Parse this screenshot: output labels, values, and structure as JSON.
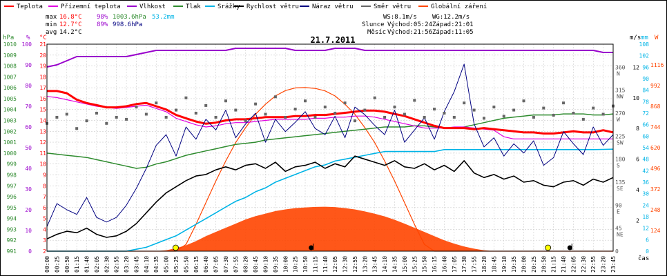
{
  "chart_data": {
    "type": "line",
    "title": "21.7.2011",
    "time_unit": "čas",
    "legend": [
      {
        "name": "Teplota",
        "color": "#ff0000"
      },
      {
        "name": "Přízemní teplota",
        "color": "#e000e0"
      },
      {
        "name": "Vlhkost",
        "color": "#9900cc"
      },
      {
        "name": "Tlak",
        "color": "#2e8b2e"
      },
      {
        "name": "Srážky",
        "color": "#00b4e6"
      },
      {
        "name": "Rychlost větru",
        "color": "#000000"
      },
      {
        "name": "Náraz větru",
        "color": "#000080"
      },
      {
        "name": "Směr větru",
        "color": "#666666"
      },
      {
        "name": "Globální záření",
        "color": "#ff4500"
      }
    ],
    "stats": {
      "max": {
        "label": "max",
        "temp": "16.8°C",
        "hum": "98%",
        "press": "1003.6hPa",
        "rain": "53.2mm"
      },
      "min": {
        "label": "min",
        "temp": "12.7°C",
        "hum": "89%",
        "press": "998.6hPa"
      },
      "avg": {
        "label": "avg",
        "temp": "14.2°C"
      }
    },
    "info": {
      "ws": "WS:8.1m/s",
      "wg": "WG:12.2m/s",
      "sun_label": "Slunce",
      "sun_rise": "Východ:05:24",
      "sun_set": "Západ:21:01",
      "moon_label": "Měsíc",
      "moon_rise": "Východ:21:56",
      "moon_set": "Západ:11:05"
    },
    "axes": {
      "hpa": {
        "unit": "hPa",
        "min": 991,
        "max": 1010,
        "color": "#2e8b2e"
      },
      "pct": {
        "unit": "%",
        "ticks": [
          100,
          90,
          80,
          70,
          60,
          50,
          40,
          30,
          20,
          10,
          0
        ],
        "color": "#9900cc"
      },
      "degc": {
        "unit": "°C",
        "min": 2,
        "max": 21,
        "color": "#ff0000"
      },
      "deg": {
        "unit": "°",
        "ticks": [
          {
            "v": 360,
            "l": "N"
          },
          {
            "v": 315,
            "l": "NW"
          },
          {
            "v": 270,
            "l": "W"
          },
          {
            "v": 225,
            "l": "SW"
          },
          {
            "v": 180,
            "l": "S"
          },
          {
            "v": 135,
            "l": "SE"
          },
          {
            "v": 90,
            "l": "E"
          },
          {
            "v": 45,
            "l": "NE"
          },
          {
            "v": 0,
            "l": ""
          }
        ],
        "color": "#555555"
      },
      "ms": {
        "unit": "m/s",
        "ticks": [
          12,
          10,
          8,
          6,
          4,
          2
        ],
        "color": "#000000"
      },
      "mm": {
        "unit": "mm",
        "min": 0,
        "max": 108,
        "step": 6,
        "color": "#00b4e6"
      },
      "w": {
        "unit": "W",
        "ticks": [
          1116,
          992,
          868,
          744,
          620,
          496,
          372,
          248,
          124
        ],
        "color": "#ff4500"
      }
    },
    "x_labels": [
      "00:00",
      "00:25",
      "00:50",
      "01:15",
      "01:40",
      "02:05",
      "02:30",
      "02:55",
      "03:20",
      "03:45",
      "04:10",
      "04:35",
      "05:00",
      "05:25",
      "05:50",
      "06:15",
      "06:40",
      "07:05",
      "07:30",
      "07:55",
      "08:20",
      "08:45",
      "09:10",
      "09:35",
      "10:00",
      "10:25",
      "10:50",
      "11:15",
      "11:40",
      "12:05",
      "12:30",
      "12:55",
      "13:20",
      "13:45",
      "14:10",
      "14:35",
      "15:00",
      "15:25",
      "15:50",
      "16:15",
      "16:40",
      "17:05",
      "17:30",
      "17:55",
      "18:20",
      "18:45",
      "19:10",
      "19:35",
      "20:00",
      "20:25",
      "20:50",
      "21:15",
      "21:40",
      "22:05",
      "22:30",
      "22:55",
      "23:20",
      "23:45"
    ],
    "series": {
      "temperature": [
        16.7,
        16.7,
        16.5,
        15.9,
        15.6,
        15.4,
        15.2,
        15.2,
        15.3,
        15.5,
        15.6,
        15.3,
        15.0,
        14.5,
        14.2,
        13.9,
        13.7,
        13.8,
        14.0,
        14.1,
        14.1,
        14.2,
        14.3,
        14.3,
        14.3,
        14.4,
        14.4,
        14.5,
        14.5,
        14.6,
        14.7,
        14.8,
        14.9,
        14.9,
        14.8,
        14.6,
        14.4,
        14.1,
        13.8,
        13.5,
        13.3,
        13.3,
        13.3,
        13.2,
        13.3,
        13.2,
        13.1,
        13.0,
        12.9,
        12.9,
        12.8,
        12.8,
        12.9,
        13.0,
        12.9,
        12.9,
        13.1,
        12.9
      ],
      "ground_temperature": [
        16.2,
        16.1,
        15.9,
        15.7,
        15.5,
        15.3,
        15.2,
        15.1,
        15.2,
        15.3,
        15.4,
        15.1,
        14.8,
        14.2,
        13.9,
        13.6,
        13.4,
        13.5,
        13.7,
        13.8,
        13.8,
        13.9,
        14.0,
        14.1,
        14.1,
        14.1,
        14.1,
        14.2,
        14.2,
        14.3,
        14.3,
        14.4,
        14.4,
        14.3,
        14.1,
        13.9,
        13.7,
        13.5,
        13.3,
        13.3,
        13.3,
        13.4,
        13.4,
        13.3,
        13.2,
        13.1,
        12.5,
        12.3,
        12.3,
        12.3,
        12.3,
        12.3,
        12.3,
        12.3,
        12.3,
        12.3,
        12.3,
        12.3
      ],
      "humidity": [
        89,
        90,
        92,
        94,
        94,
        94,
        94,
        94,
        94,
        95,
        96,
        97,
        97,
        97,
        97,
        97,
        97,
        97,
        97,
        98,
        98,
        98,
        98,
        98,
        98,
        97,
        97,
        97,
        97,
        98,
        98,
        98,
        97,
        97,
        97,
        97,
        97,
        97,
        97,
        97,
        97,
        97,
        97,
        97,
        97,
        97,
        97,
        97,
        97,
        97,
        97,
        97,
        97,
        97,
        97,
        97,
        96,
        96
      ],
      "pressure": [
        1000.0,
        999.9,
        999.8,
        999.7,
        999.6,
        999.4,
        999.2,
        999.0,
        998.8,
        998.6,
        998.7,
        999.0,
        999.2,
        999.5,
        999.8,
        1000.0,
        1000.2,
        1000.4,
        1000.6,
        1000.8,
        1000.9,
        1001.0,
        1001.2,
        1001.3,
        1001.4,
        1001.5,
        1001.6,
        1001.7,
        1001.8,
        1001.9,
        1002.0,
        1002.1,
        1002.2,
        1002.3,
        1002.4,
        1002.4,
        1002.4,
        1002.5,
        1002.5,
        1002.4,
        1002.3,
        1002.3,
        1002.4,
        1002.6,
        1002.8,
        1003.0,
        1003.2,
        1003.3,
        1003.4,
        1003.5,
        1003.5,
        1003.5,
        1003.6,
        1003.6,
        1003.6,
        1003.5,
        1003.5,
        1003.6
      ],
      "precipitation": [
        0,
        0,
        0,
        0,
        0,
        0,
        0,
        0,
        0,
        1,
        2,
        4,
        6,
        8,
        11,
        14,
        17,
        20,
        23,
        26,
        28,
        31,
        33,
        36,
        38,
        40,
        42,
        44,
        45,
        47,
        48,
        49,
        50,
        51,
        52,
        52,
        52,
        52,
        52,
        52,
        53,
        53,
        53,
        53,
        53,
        53,
        53,
        53,
        53,
        53,
        53,
        53,
        53,
        53,
        53,
        53,
        53.1,
        53.2
      ],
      "wind_speed": [
        0.8,
        1.1,
        1.3,
        1.2,
        1.5,
        1.1,
        0.9,
        1.0,
        1.3,
        1.8,
        2.5,
        3.2,
        3.8,
        4.2,
        4.6,
        4.9,
        5.0,
        5.3,
        5.5,
        5.3,
        5.6,
        5.7,
        5.4,
        5.8,
        5.2,
        5.5,
        5.6,
        5.8,
        5.4,
        5.7,
        5.5,
        6.2,
        6.0,
        5.8,
        5.6,
        5.9,
        5.5,
        5.4,
        5.7,
        5.3,
        5.6,
        5.2,
        5.9,
        5.1,
        4.8,
        5.0,
        4.7,
        4.9,
        4.5,
        4.6,
        4.3,
        4.2,
        4.5,
        4.6,
        4.3,
        4.7,
        4.5,
        4.8
      ],
      "wind_gust": [
        1.6,
        3.1,
        2.7,
        2.4,
        3.5,
        2.2,
        1.9,
        2.2,
        3.0,
        4.1,
        5.4,
        6.9,
        7.6,
        6.2,
        8.1,
        7.3,
        8.6,
        7.9,
        9.2,
        7.4,
        8.3,
        9.0,
        7.1,
        8.6,
        7.8,
        8.4,
        9.1,
        8.0,
        7.6,
        8.8,
        7.4,
        9.4,
        8.9,
        8.2,
        7.6,
        9.2,
        7.1,
        7.9,
        8.7,
        7.3,
        9.1,
        10.4,
        12.2,
        8.3,
        6.8,
        7.4,
        6.2,
        7.0,
        6.4,
        7.2,
        5.6,
        6.1,
        7.8,
        7.0,
        6.3,
        8.1,
        6.9,
        7.6
      ],
      "wind_direction": [
        250,
        262,
        268,
        240,
        255,
        270,
        250,
        262,
        258,
        282,
        268,
        290,
        262,
        276,
        300,
        270,
        285,
        262,
        294,
        276,
        255,
        288,
        268,
        302,
        262,
        278,
        294,
        262,
        282,
        270,
        290,
        255,
        276,
        300,
        262,
        282,
        268,
        295,
        262,
        278,
        270,
        262,
        290,
        276,
        260,
        282,
        264,
        276,
        294,
        262,
        280,
        266,
        290,
        270,
        258,
        280,
        268,
        284
      ],
      "solar_radiation": [
        0,
        0,
        0,
        0,
        0,
        0,
        0,
        0,
        0,
        0,
        0,
        0,
        5,
        18,
        35,
        60,
        90,
        115,
        140,
        165,
        190,
        210,
        225,
        240,
        250,
        258,
        262,
        265,
        266,
        264,
        258,
        250,
        238,
        224,
        208,
        188,
        165,
        140,
        115,
        90,
        65,
        45,
        28,
        15,
        5,
        0,
        0,
        0,
        0,
        0,
        0,
        0,
        0,
        0,
        0,
        0,
        0,
        0
      ],
      "theoretical_radiation": [
        0,
        0,
        0,
        0,
        0,
        0,
        0,
        0,
        0,
        0,
        0,
        0,
        0,
        0,
        40,
        160,
        290,
        420,
        540,
        650,
        740,
        820,
        880,
        930,
        962,
        978,
        980,
        975,
        960,
        930,
        880,
        820,
        740,
        650,
        540,
        420,
        290,
        160,
        40,
        0,
        0,
        0,
        0,
        0,
        0,
        0,
        0,
        0,
        0,
        0,
        0,
        0,
        0,
        0,
        0,
        0,
        0,
        0
      ]
    },
    "markers": [
      {
        "type": "sun",
        "time": "05:24",
        "color": "#ffff00"
      },
      {
        "type": "moon-set",
        "time": "11:05",
        "color": "#000000"
      },
      {
        "type": "sun",
        "time": "21:01",
        "color": "#ffff00"
      },
      {
        "type": "moon-rise",
        "time": "21:56",
        "color": "#000000"
      }
    ]
  }
}
